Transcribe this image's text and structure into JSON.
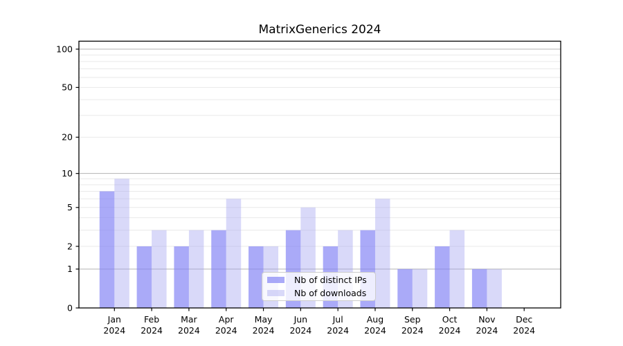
{
  "title": "MatrixGenerics 2024",
  "legend": {
    "items": [
      {
        "label": "Nb of distinct IPs",
        "color": "rgba(130,130,245,0.68)"
      },
      {
        "label": "Nb of downloads",
        "color": "rgba(160,160,240,0.40)"
      }
    ]
  },
  "chart_data": {
    "type": "bar",
    "title": "MatrixGenerics 2024",
    "categories": [
      "Jan 2024",
      "Feb 2024",
      "Mar 2024",
      "Apr 2024",
      "May 2024",
      "Jun 2024",
      "Jul 2024",
      "Aug 2024",
      "Sep 2024",
      "Oct 2024",
      "Nov 2024",
      "Dec 2024"
    ],
    "series": [
      {
        "name": "Nb of distinct IPs",
        "color": "rgba(130,130,245,0.68)",
        "values": [
          7,
          2,
          2,
          3,
          2,
          3,
          2,
          3,
          1,
          2,
          1,
          0
        ]
      },
      {
        "name": "Nb of downloads",
        "color": "rgba(160,160,240,0.40)",
        "values": [
          9,
          3,
          3,
          6,
          2,
          5,
          3,
          6,
          1,
          3,
          1,
          0
        ]
      }
    ],
    "xlabel": "",
    "ylabel": "",
    "y_axis": {
      "scale": "log1p",
      "range": [
        0,
        100
      ],
      "ticks": [
        0,
        1,
        2,
        5,
        10,
        20,
        50,
        100
      ],
      "major_gridlines": [
        1,
        10,
        100
      ],
      "minor_gridlines": [
        2,
        3,
        4,
        5,
        6,
        7,
        8,
        9,
        20,
        30,
        40,
        50,
        60,
        70,
        80,
        90
      ]
    },
    "grid": {
      "on": true,
      "major_color": "#b3b3b3",
      "minor_color": "#e9e9e9"
    },
    "legend_position": "lower center",
    "colors": {
      "spine": "#000000",
      "tick_label": "#000000",
      "background": "#ffffff"
    }
  }
}
